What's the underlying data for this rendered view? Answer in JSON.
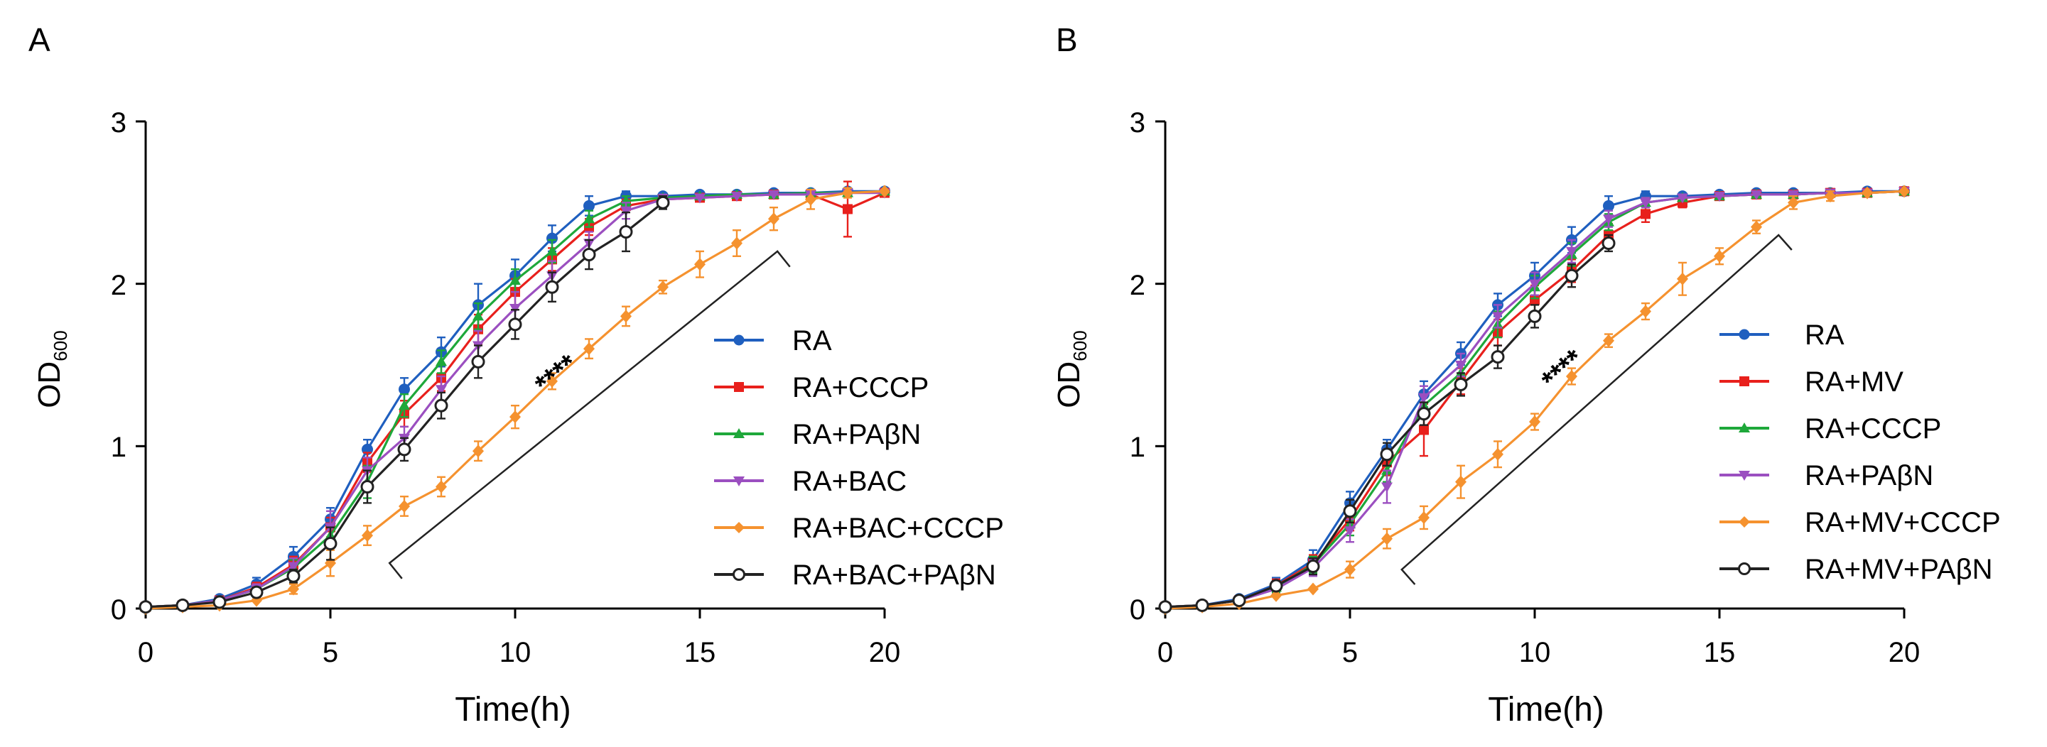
{
  "chart_data": [
    {
      "panel_label": "A",
      "type": "line",
      "xlabel": "Time(h)",
      "ylabel_main": "OD",
      "ylabel_sub": "600",
      "xlim": [
        0,
        20
      ],
      "ylim": [
        0,
        3
      ],
      "xticks": [
        "0",
        "5",
        "10",
        "15",
        "20"
      ],
      "yticks": [
        "0",
        "1",
        "2",
        "3"
      ],
      "legend_position": "center-right",
      "significance": "****",
      "bracket": {
        "x1": 6.6,
        "y1": 0.28,
        "x2": 17.1,
        "y2": 2.2
      },
      "x": [
        0,
        1,
        2,
        3,
        4,
        5,
        6,
        7,
        8,
        9,
        10,
        11,
        12,
        13,
        14,
        15,
        16,
        17,
        18,
        19,
        20
      ],
      "series": [
        {
          "name": "RA",
          "color": "#1f5fbf",
          "marker": "circle",
          "values": [
            0.01,
            0.02,
            0.06,
            0.15,
            0.32,
            0.55,
            0.98,
            1.35,
            1.58,
            1.87,
            2.05,
            2.28,
            2.48,
            2.54,
            2.54,
            2.55,
            2.55,
            2.56,
            2.56,
            2.57,
            2.57
          ],
          "errors": [
            0.01,
            0.01,
            0.02,
            0.04,
            0.06,
            0.07,
            0.06,
            0.07,
            0.09,
            0.13,
            0.1,
            0.08,
            0.06,
            0.03,
            0.02,
            0.02,
            0.02,
            0.02,
            0.02,
            0.02,
            0.02
          ]
        },
        {
          "name": "RA+CCCP",
          "color": "#e8201c",
          "marker": "square",
          "values": [
            0.01,
            0.02,
            0.05,
            0.13,
            0.27,
            0.5,
            0.9,
            1.2,
            1.42,
            1.72,
            1.95,
            2.15,
            2.35,
            2.48,
            2.52,
            2.53,
            2.54,
            2.55,
            2.55,
            2.46,
            2.56
          ],
          "errors": [
            0.01,
            0.01,
            0.02,
            0.03,
            0.05,
            0.06,
            0.06,
            0.08,
            0.08,
            0.09,
            0.08,
            0.07,
            0.05,
            0.04,
            0.02,
            0.02,
            0.02,
            0.02,
            0.02,
            0.17,
            0.02
          ]
        },
        {
          "name": "RA+PAβN",
          "color": "#1ea83a",
          "marker": "triangle-up",
          "values": [
            0.01,
            0.02,
            0.05,
            0.12,
            0.25,
            0.45,
            0.78,
            1.25,
            1.52,
            1.8,
            2.02,
            2.2,
            2.4,
            2.51,
            2.53,
            2.54,
            2.55,
            2.55,
            2.56,
            2.56,
            2.57
          ],
          "errors": [
            0.01,
            0.01,
            0.02,
            0.03,
            0.05,
            0.06,
            0.1,
            0.07,
            0.07,
            0.08,
            0.07,
            0.07,
            0.05,
            0.03,
            0.02,
            0.02,
            0.02,
            0.02,
            0.02,
            0.02,
            0.02
          ]
        },
        {
          "name": "RA+BAC",
          "color": "#9b4fc0",
          "marker": "triangle-down",
          "values": [
            0.01,
            0.02,
            0.05,
            0.12,
            0.26,
            0.5,
            0.85,
            1.05,
            1.35,
            1.62,
            1.85,
            2.05,
            2.25,
            2.45,
            2.52,
            2.53,
            2.54,
            2.55,
            2.55,
            2.56,
            2.56
          ],
          "errors": [
            0.01,
            0.01,
            0.02,
            0.03,
            0.05,
            0.1,
            0.08,
            0.07,
            0.08,
            0.09,
            0.1,
            0.09,
            0.07,
            0.05,
            0.03,
            0.02,
            0.02,
            0.02,
            0.02,
            0.02,
            0.02
          ]
        },
        {
          "name": "RA+BAC+CCCP",
          "color": "#f5922f",
          "marker": "diamond",
          "values": [
            0.0,
            0.01,
            0.02,
            0.05,
            0.12,
            0.28,
            0.45,
            0.63,
            0.75,
            0.97,
            1.18,
            1.4,
            1.6,
            1.8,
            1.98,
            2.12,
            2.25,
            2.4,
            2.52,
            2.56,
            2.57
          ],
          "errors": [
            0.01,
            0.01,
            0.01,
            0.02,
            0.03,
            0.08,
            0.06,
            0.06,
            0.06,
            0.06,
            0.07,
            0.05,
            0.06,
            0.06,
            0.04,
            0.08,
            0.08,
            0.07,
            0.06,
            0.03,
            0.02
          ]
        },
        {
          "name": "RA+BAC+PAβN",
          "color": "#222222",
          "marker": "open-circle",
          "values": [
            0.01,
            0.02,
            0.04,
            0.1,
            0.2,
            0.4,
            0.75,
            0.98,
            1.25,
            1.52,
            1.75,
            1.98,
            2.18,
            2.32,
            2.5,
            null,
            null,
            null,
            null,
            null,
            null
          ],
          "errors": [
            0.01,
            0.01,
            0.02,
            0.03,
            0.04,
            0.1,
            0.1,
            0.07,
            0.08,
            0.1,
            0.09,
            0.09,
            0.09,
            0.12,
            0.04,
            null,
            null,
            null,
            null,
            null,
            null
          ]
        }
      ]
    },
    {
      "panel_label": "B",
      "type": "line",
      "xlabel": "Time(h)",
      "ylabel_main": "OD",
      "ylabel_sub": "600",
      "xlim": [
        0,
        20
      ],
      "ylim": [
        0,
        3
      ],
      "xticks": [
        "0",
        "5",
        "10",
        "15",
        "20"
      ],
      "yticks": [
        "0",
        "1",
        "2",
        "3"
      ],
      "legend_position": "center-right",
      "significance": "****",
      "bracket": {
        "x1": 6.4,
        "y1": 0.24,
        "x2": 16.6,
        "y2": 2.3
      },
      "x": [
        0,
        1,
        2,
        3,
        4,
        5,
        6,
        7,
        8,
        9,
        10,
        11,
        12,
        13,
        14,
        15,
        16,
        17,
        18,
        19,
        20
      ],
      "series": [
        {
          "name": "RA",
          "color": "#1f5fbf",
          "marker": "circle",
          "values": [
            0.01,
            0.02,
            0.06,
            0.15,
            0.3,
            0.65,
            0.98,
            1.32,
            1.57,
            1.87,
            2.05,
            2.27,
            2.48,
            2.54,
            2.54,
            2.55,
            2.56,
            2.56,
            2.56,
            2.57,
            2.57
          ],
          "errors": [
            0.01,
            0.01,
            0.02,
            0.04,
            0.06,
            0.07,
            0.06,
            0.08,
            0.07,
            0.07,
            0.08,
            0.08,
            0.06,
            0.03,
            0.02,
            0.02,
            0.02,
            0.02,
            0.02,
            0.02,
            0.02
          ]
        },
        {
          "name": "RA+MV",
          "color": "#e8201c",
          "marker": "square",
          "values": [
            0.01,
            0.02,
            0.05,
            0.14,
            0.28,
            0.55,
            0.9,
            1.1,
            1.4,
            1.7,
            1.9,
            2.08,
            2.3,
            2.43,
            2.5,
            2.54,
            2.55,
            2.55,
            2.56,
            2.56,
            2.57
          ],
          "errors": [
            0.01,
            0.01,
            0.02,
            0.04,
            0.05,
            0.07,
            0.08,
            0.16,
            0.08,
            0.08,
            0.09,
            0.07,
            0.07,
            0.05,
            0.03,
            0.02,
            0.02,
            0.02,
            0.02,
            0.02,
            0.02
          ]
        },
        {
          "name": "RA+CCCP",
          "color": "#1ea83a",
          "marker": "triangle-up",
          "values": [
            0.01,
            0.02,
            0.05,
            0.13,
            0.27,
            0.52,
            0.85,
            1.25,
            1.45,
            1.75,
            1.98,
            2.18,
            2.38,
            2.5,
            2.53,
            2.54,
            2.55,
            2.55,
            2.56,
            2.56,
            2.57
          ],
          "errors": [
            0.01,
            0.01,
            0.02,
            0.03,
            0.05,
            0.07,
            0.07,
            0.07,
            0.07,
            0.08,
            0.07,
            0.07,
            0.05,
            0.03,
            0.02,
            0.02,
            0.02,
            0.02,
            0.02,
            0.02,
            0.02
          ]
        },
        {
          "name": "RA+PAβN",
          "color": "#9b4fc0",
          "marker": "triangle-down",
          "values": [
            0.01,
            0.02,
            0.05,
            0.12,
            0.25,
            0.48,
            0.75,
            1.3,
            1.5,
            1.8,
            2.0,
            2.2,
            2.4,
            2.5,
            2.53,
            2.54,
            2.55,
            2.55,
            2.56,
            2.56,
            2.57
          ],
          "errors": [
            0.01,
            0.01,
            0.02,
            0.03,
            0.05,
            0.07,
            0.1,
            0.07,
            0.07,
            0.07,
            0.07,
            0.07,
            0.05,
            0.03,
            0.02,
            0.02,
            0.02,
            0.02,
            0.02,
            0.02,
            0.02
          ]
        },
        {
          "name": "RA+MV+CCCP",
          "color": "#f5922f",
          "marker": "diamond",
          "values": [
            0.0,
            0.01,
            0.03,
            0.08,
            0.12,
            0.24,
            0.43,
            0.56,
            0.78,
            0.95,
            1.15,
            1.43,
            1.65,
            1.83,
            2.03,
            2.17,
            2.35,
            2.5,
            2.54,
            2.56,
            2.57
          ],
          "errors": [
            0.01,
            0.01,
            0.01,
            0.02,
            0.02,
            0.05,
            0.06,
            0.07,
            0.1,
            0.08,
            0.05,
            0.05,
            0.04,
            0.05,
            0.1,
            0.05,
            0.04,
            0.04,
            0.03,
            0.02,
            0.02
          ]
        },
        {
          "name": "RA+MV+PAβN",
          "color": "#222222",
          "marker": "open-circle",
          "values": [
            0.01,
            0.02,
            0.05,
            0.14,
            0.26,
            0.6,
            0.95,
            1.2,
            1.38,
            1.55,
            1.8,
            2.05,
            2.25,
            null,
            null,
            null,
            null,
            null,
            null,
            null,
            null
          ],
          "errors": [
            0.01,
            0.01,
            0.02,
            0.03,
            0.05,
            0.07,
            0.07,
            0.07,
            0.07,
            0.07,
            0.07,
            0.07,
            0.05,
            null,
            null,
            null,
            null,
            null,
            null,
            null,
            null
          ]
        }
      ]
    }
  ]
}
